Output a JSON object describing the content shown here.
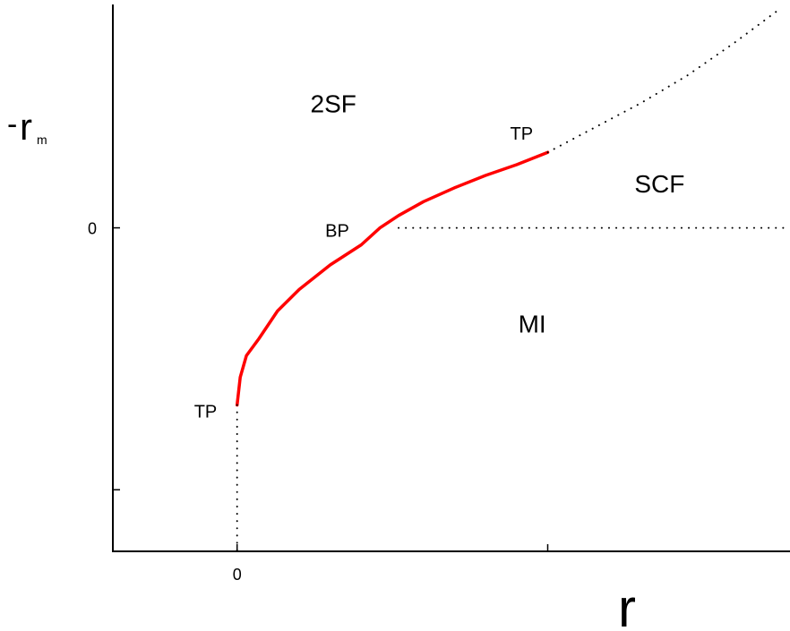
{
  "chart_data": {
    "type": "line",
    "xlabel": "r",
    "ylabel": {
      "prefix": "-",
      "main": "r",
      "subscript": "m"
    },
    "x_ticks": [
      {
        "value": 0,
        "label": "0"
      },
      {
        "value": 1,
        "label": ""
      }
    ],
    "y_ticks": [
      {
        "value": 0,
        "label": "0"
      },
      {
        "value": -1.7,
        "label": ""
      }
    ],
    "xlim": [
      -0.4,
      1.78
    ],
    "ylim": [
      -2.1,
      1.45
    ],
    "colors": {
      "boundary": "#ff0000",
      "axis": "#000000"
    },
    "series": [
      {
        "style": "solid",
        "color": "#ff0000",
        "points": [
          [
            0,
            -1.15
          ],
          [
            0.01,
            -0.97
          ],
          [
            0.03,
            -0.83
          ],
          [
            0.07,
            -0.72
          ],
          [
            0.13,
            -0.54
          ],
          [
            0.2,
            -0.4
          ],
          [
            0.3,
            -0.24
          ],
          [
            0.4,
            -0.11
          ],
          [
            0.46,
            0.0
          ],
          [
            0.52,
            0.08
          ],
          [
            0.6,
            0.17
          ],
          [
            0.7,
            0.26
          ],
          [
            0.8,
            0.34
          ],
          [
            0.9,
            0.41
          ],
          [
            1.0,
            0.49
          ]
        ]
      },
      {
        "style": "dotted",
        "color": "#000000",
        "points": [
          [
            1.0,
            0.49
          ],
          [
            1.15,
            0.65
          ],
          [
            1.3,
            0.81
          ],
          [
            1.45,
            0.99
          ],
          [
            1.6,
            1.2
          ],
          [
            1.74,
            1.41
          ]
        ]
      },
      {
        "style": "dotted",
        "color": "#000000",
        "points": [
          [
            0.52,
            0.0
          ],
          [
            1.78,
            0.0
          ]
        ]
      },
      {
        "style": "dotted",
        "color": "#000000",
        "points": [
          [
            0,
            -1.15
          ],
          [
            0,
            -2.1
          ]
        ]
      }
    ],
    "points": [
      {
        "label": "TP",
        "x": 0,
        "y": -1.15
      },
      {
        "label": "BP",
        "x": 0.48,
        "y": 0.0
      },
      {
        "label": "TP",
        "x": 1.0,
        "y": 0.49
      }
    ],
    "regions": [
      {
        "label": "2SF",
        "x": 0.31,
        "y": 0.75
      },
      {
        "label": "SCF",
        "x": 1.36,
        "y": 0.23
      },
      {
        "label": "MI",
        "x": 0.95,
        "y": -0.68
      }
    ],
    "grid": false
  }
}
